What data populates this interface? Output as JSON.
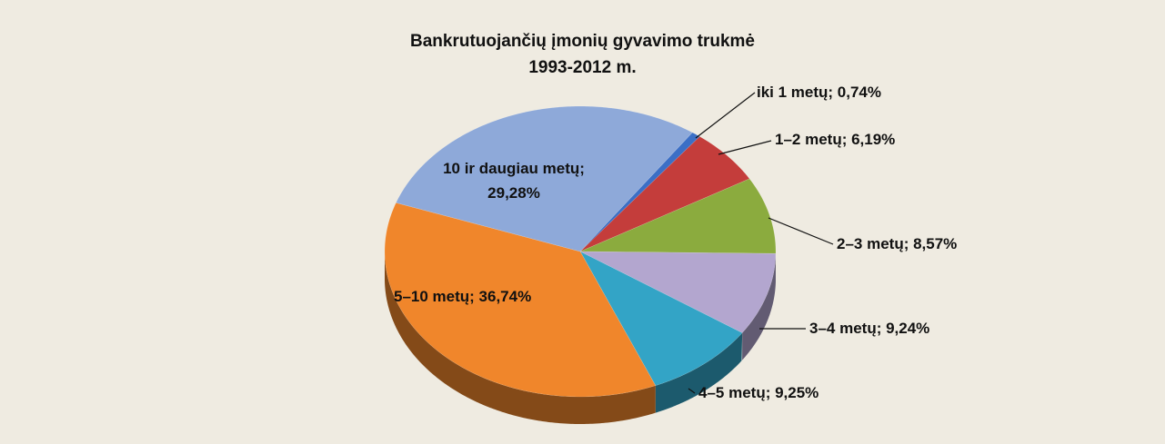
{
  "chart_data": {
    "type": "pie",
    "title": "Bankrutuojančių įmonių gyvavimo trukmė",
    "subtitle": "1993-2012 m.",
    "categories": [
      "iki 1 metų; 0,74%",
      "1–2 metų; 6,19%",
      "2–3 metų; 8,57%",
      "3–4 metų; 9,24%",
      "4–5 metų; 9,25%",
      "5–10 metų; 36,74%",
      "10 ir daugiau metų; 29,28%"
    ],
    "values": [
      0.74,
      6.19,
      8.57,
      9.24,
      9.25,
      36.74,
      29.28
    ],
    "colors": [
      "#3b6fc6",
      "#c43d3b",
      "#8bab3e",
      "#b3a6cf",
      "#33a4c6",
      "#f0862b",
      "#8ea9d9"
    ]
  }
}
